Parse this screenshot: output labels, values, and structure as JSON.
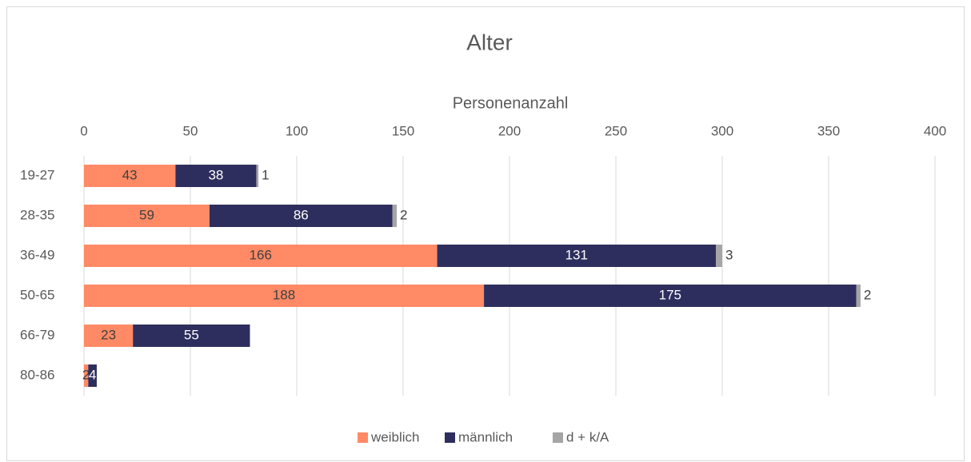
{
  "chart_data": {
    "type": "bar",
    "orientation": "horizontal",
    "stacked": true,
    "title": "Alter",
    "xlabel": "Personenanzahl",
    "categories": [
      "19-27",
      "28-35",
      "36-49",
      "50-65",
      "66-79",
      "80-86"
    ],
    "series": [
      {
        "name": "weiblich",
        "color": "#ff8a65",
        "values": [
          43,
          59,
          166,
          188,
          23,
          2
        ]
      },
      {
        "name": "männlich",
        "color": "#2e2e5e",
        "values": [
          38,
          86,
          131,
          175,
          55,
          4
        ]
      },
      {
        "name": "d + k/A",
        "color": "#a5a5a5",
        "values": [
          1,
          2,
          3,
          2,
          null,
          null
        ]
      }
    ],
    "xlim": [
      0,
      400
    ],
    "xticks": [
      0,
      50,
      100,
      150,
      200,
      250,
      300,
      350,
      400
    ],
    "grid": true,
    "legend": "bottom"
  }
}
